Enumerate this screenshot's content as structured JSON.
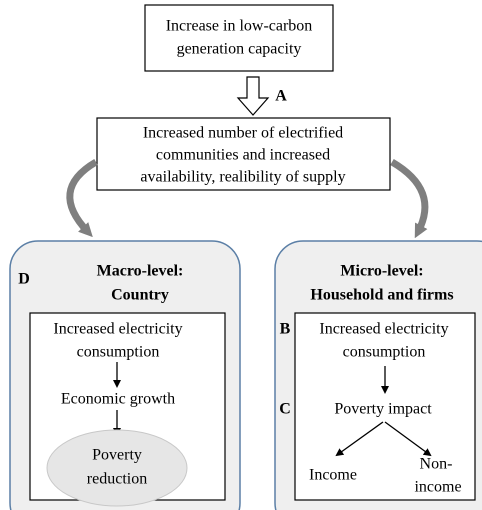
{
  "top_box": {
    "lines": [
      "Increase in low-carbon",
      "generation capacity"
    ]
  },
  "arrow_label": "A",
  "middle_box": {
    "lines": [
      "Increased number of electrified",
      "communities and increased",
      "availability,  realibility of supply"
    ]
  },
  "macro": {
    "marker": "D",
    "title": [
      "Macro-level:",
      "Country"
    ],
    "consumption": [
      "Increased electricity",
      "consumption"
    ],
    "growth": "Economic growth",
    "reduction": [
      "Poverty",
      "reduction"
    ]
  },
  "micro": {
    "title": [
      "Micro-level:",
      "Household and firms"
    ],
    "marker_b": "B",
    "marker_c": "C",
    "consumption": [
      "Increased electricity",
      "consumption"
    ],
    "impact": "Poverty impact",
    "income": "Income",
    "non_income": [
      "Non-",
      "income"
    ]
  }
}
